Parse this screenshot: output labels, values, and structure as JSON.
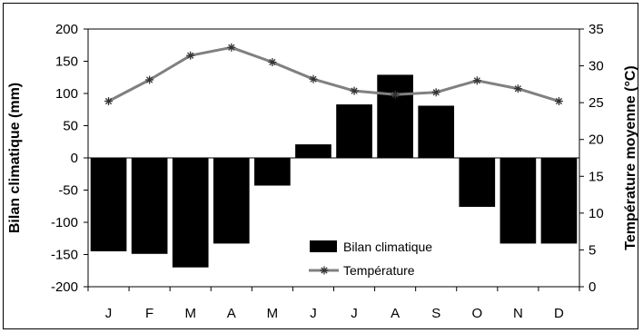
{
  "chart_data": {
    "type": "bar+line",
    "categories": [
      "J",
      "F",
      "M",
      "A",
      "M",
      "J",
      "J",
      "A",
      "S",
      "O",
      "N",
      "D"
    ],
    "series": [
      {
        "name": "Bilan climatique",
        "type": "bar",
        "axis": "left",
        "color": "#000000",
        "values": [
          -145,
          -149,
          -170,
          -133,
          -43,
          21,
          83,
          129,
          81,
          -76,
          -133,
          -133
        ]
      },
      {
        "name": "Température",
        "type": "line",
        "axis": "right",
        "color": "#808080",
        "marker": "asterisk",
        "values": [
          25.2,
          28.1,
          31.4,
          32.5,
          30.5,
          28.2,
          26.6,
          26.1,
          26.4,
          28.0,
          26.9,
          25.2
        ]
      }
    ],
    "ylabel": "Bilan climatique (mm)",
    "ylabel_right": "Température moyenne (°C)",
    "ylim": [
      -200,
      200
    ],
    "ylim_right": [
      0,
      35
    ],
    "yticks": [
      "200",
      "150",
      "100",
      "50",
      "0",
      "-50",
      "-100",
      "-150",
      "-200"
    ],
    "yticks_right": [
      "35",
      "30",
      "25",
      "20",
      "15",
      "10",
      "5",
      "0"
    ],
    "legend_position": "bottom-center",
    "grid": false
  }
}
